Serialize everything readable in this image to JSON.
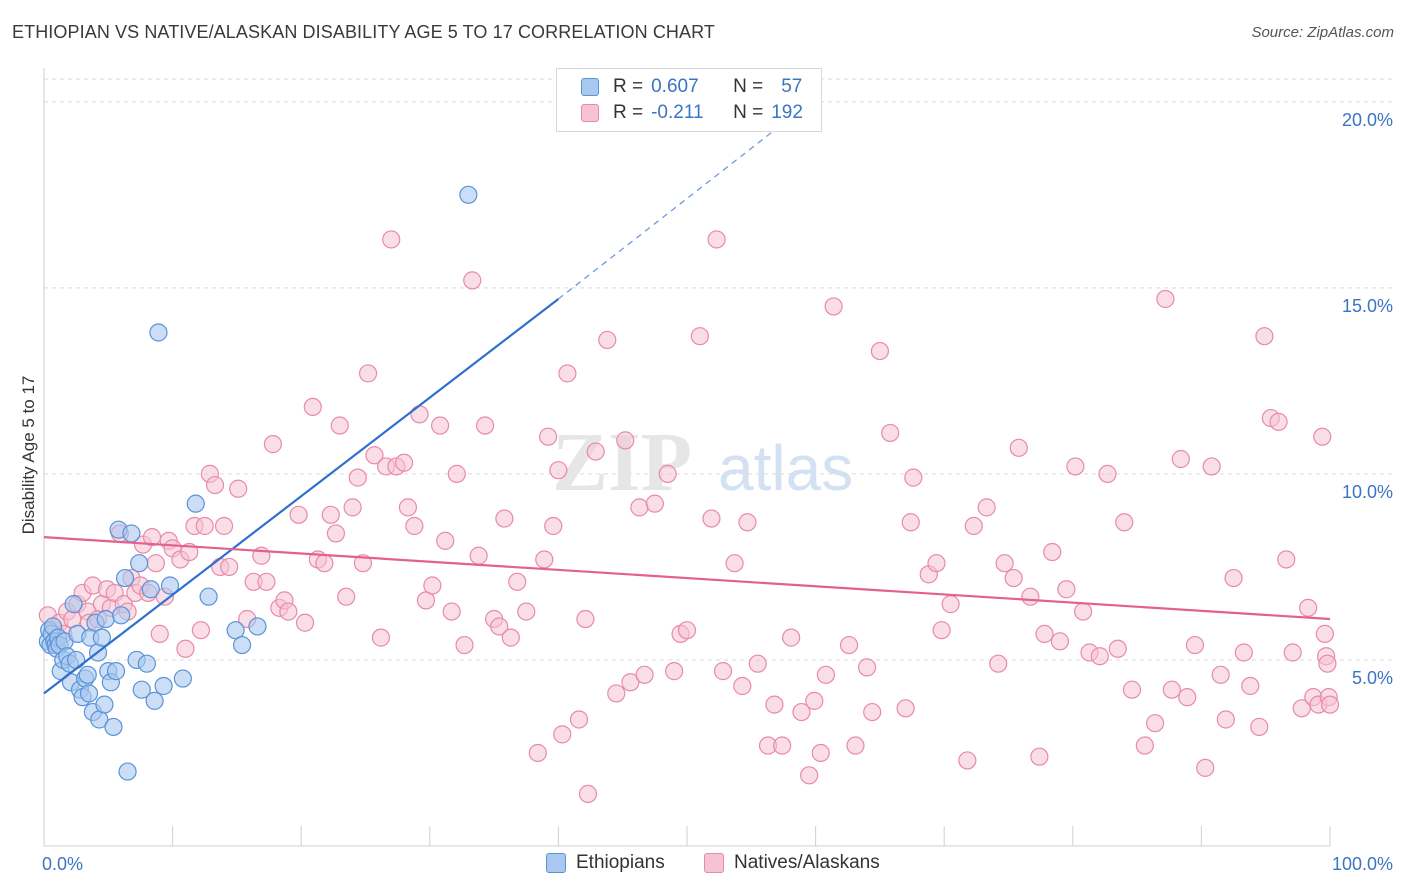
{
  "title": "ETHIOPIAN VS NATIVE/ALASKAN DISABILITY AGE 5 TO 17 CORRELATION CHART",
  "source": "Source: ZipAtlas.com",
  "watermark": {
    "zip": "ZIP",
    "atlas": "atlas"
  },
  "legend_top": {
    "rows": [
      {
        "r_label": "R =",
        "r_value": "0.607",
        "n_label": "N =",
        "n_value": "57"
      },
      {
        "r_label": "R =",
        "r_value": "-0.211",
        "n_label": "N =",
        "n_value": "192"
      }
    ]
  },
  "bottom_legend": {
    "ethiopians": "Ethiopians",
    "natives": "Natives/Alaskans"
  },
  "colors": {
    "blue_fill": "#a9c8f0",
    "blue_stroke": "#5b93d6",
    "blue_line": "#2f6fd0",
    "pink_fill": "#f6c3d3",
    "pink_stroke": "#e88aa8",
    "pink_line": "#e3608f",
    "axis_label": "#3a74c4",
    "grid": "#d9d9d9"
  },
  "chart_data": {
    "type": "scatter",
    "title": "ETHIOPIAN VS NATIVE/ALASKAN DISABILITY AGE 5 TO 17 CORRELATION CHART",
    "xlabel": "",
    "ylabel": "Disability Age 5 to 17",
    "xlim": [
      0,
      100
    ],
    "ylim": [
      0,
      20.8
    ],
    "x_tick_labels": [
      "0.0%",
      "100.0%"
    ],
    "y_ticks": [
      5,
      10,
      15,
      20
    ],
    "y_tick_labels": [
      "5.0%",
      "10.0%",
      "15.0%",
      "20.0%"
    ],
    "grid": true,
    "legend_position": "top-center",
    "series": [
      {
        "name": "Ethiopians",
        "r": 0.607,
        "n": 57,
        "trend": {
          "x0": 0,
          "y0": 4.1,
          "x1": 40,
          "y1": 14.7,
          "dash_to_x": 60,
          "dash_to_y": 20.1
        },
        "points": [
          [
            0.3,
            5.5
          ],
          [
            0.4,
            5.8
          ],
          [
            0.5,
            5.4
          ],
          [
            0.6,
            5.7
          ],
          [
            0.7,
            5.9
          ],
          [
            0.8,
            5.5
          ],
          [
            0.9,
            5.4
          ],
          [
            1.0,
            5.3
          ],
          [
            1.1,
            5.6
          ],
          [
            1.2,
            5.4
          ],
          [
            1.3,
            4.7
          ],
          [
            1.5,
            5.0
          ],
          [
            1.6,
            5.5
          ],
          [
            1.8,
            5.1
          ],
          [
            2.0,
            4.9
          ],
          [
            2.1,
            4.4
          ],
          [
            2.3,
            6.5
          ],
          [
            2.5,
            5.0
          ],
          [
            2.6,
            5.7
          ],
          [
            2.8,
            4.2
          ],
          [
            3.0,
            4.0
          ],
          [
            3.2,
            4.5
          ],
          [
            3.4,
            4.6
          ],
          [
            3.5,
            4.1
          ],
          [
            3.6,
            5.6
          ],
          [
            3.8,
            3.6
          ],
          [
            4.0,
            6.0
          ],
          [
            4.2,
            5.2
          ],
          [
            4.3,
            3.4
          ],
          [
            4.5,
            5.6
          ],
          [
            4.7,
            3.8
          ],
          [
            4.8,
            6.1
          ],
          [
            5.0,
            4.7
          ],
          [
            5.2,
            4.4
          ],
          [
            5.4,
            3.2
          ],
          [
            5.6,
            4.7
          ],
          [
            5.8,
            8.5
          ],
          [
            6.0,
            6.2
          ],
          [
            6.3,
            7.2
          ],
          [
            6.5,
            2.0
          ],
          [
            6.8,
            8.4
          ],
          [
            7.2,
            5.0
          ],
          [
            7.4,
            7.6
          ],
          [
            7.6,
            4.2
          ],
          [
            8.0,
            4.9
          ],
          [
            8.3,
            6.9
          ],
          [
            8.6,
            3.9
          ],
          [
            8.9,
            13.8
          ],
          [
            9.3,
            4.3
          ],
          [
            9.8,
            7.0
          ],
          [
            10.8,
            4.5
          ],
          [
            11.8,
            9.2
          ],
          [
            12.8,
            6.7
          ],
          [
            14.9,
            5.8
          ],
          [
            15.4,
            5.4
          ],
          [
            16.6,
            5.9
          ],
          [
            33.0,
            17.5
          ]
        ]
      },
      {
        "name": "Natives/Alaskans",
        "r": -0.211,
        "n": 192,
        "trend": {
          "x0": 0,
          "y0": 8.3,
          "x1": 100,
          "y1": 6.1
        },
        "points": [
          [
            0.3,
            6.2
          ],
          [
            0.8,
            5.8
          ],
          [
            1.2,
            6.0
          ],
          [
            1.5,
            5.7
          ],
          [
            1.8,
            6.3
          ],
          [
            2.2,
            6.1
          ],
          [
            2.6,
            6.5
          ],
          [
            3.0,
            6.8
          ],
          [
            3.4,
            6.3
          ],
          [
            3.5,
            6.0
          ],
          [
            3.8,
            7.0
          ],
          [
            4.2,
            6.1
          ],
          [
            4.5,
            6.5
          ],
          [
            4.9,
            6.9
          ],
          [
            5.2,
            6.4
          ],
          [
            5.5,
            6.8
          ],
          [
            5.9,
            8.4
          ],
          [
            6.2,
            6.5
          ],
          [
            6.5,
            6.3
          ],
          [
            6.8,
            7.2
          ],
          [
            7.1,
            6.8
          ],
          [
            7.5,
            7.0
          ],
          [
            7.7,
            8.1
          ],
          [
            8.1,
            6.8
          ],
          [
            8.4,
            8.3
          ],
          [
            8.7,
            7.6
          ],
          [
            9.0,
            5.7
          ],
          [
            9.4,
            6.7
          ],
          [
            9.7,
            8.2
          ],
          [
            10.0,
            8.0
          ],
          [
            10.6,
            7.7
          ],
          [
            11.0,
            5.3
          ],
          [
            11.3,
            7.9
          ],
          [
            11.7,
            8.6
          ],
          [
            12.2,
            5.8
          ],
          [
            12.5,
            8.6
          ],
          [
            12.9,
            10.0
          ],
          [
            13.3,
            9.7
          ],
          [
            13.7,
            7.5
          ],
          [
            14.0,
            8.6
          ],
          [
            14.4,
            7.5
          ],
          [
            15.1,
            9.6
          ],
          [
            15.8,
            6.1
          ],
          [
            16.3,
            7.1
          ],
          [
            16.9,
            7.8
          ],
          [
            17.3,
            7.1
          ],
          [
            17.8,
            10.8
          ],
          [
            18.3,
            6.4
          ],
          [
            18.7,
            6.6
          ],
          [
            19.0,
            6.3
          ],
          [
            19.8,
            8.9
          ],
          [
            20.3,
            6.0
          ],
          [
            20.9,
            11.8
          ],
          [
            21.3,
            7.7
          ],
          [
            21.8,
            7.6
          ],
          [
            22.3,
            8.9
          ],
          [
            22.7,
            8.4
          ],
          [
            23.0,
            11.3
          ],
          [
            23.5,
            6.7
          ],
          [
            24.0,
            9.1
          ],
          [
            24.4,
            9.9
          ],
          [
            24.8,
            7.6
          ],
          [
            25.2,
            12.7
          ],
          [
            25.7,
            10.5
          ],
          [
            26.2,
            5.6
          ],
          [
            26.6,
            10.2
          ],
          [
            27.0,
            16.3
          ],
          [
            27.4,
            10.2
          ],
          [
            28.0,
            10.3
          ],
          [
            28.3,
            9.1
          ],
          [
            28.8,
            8.6
          ],
          [
            29.2,
            11.6
          ],
          [
            29.7,
            6.6
          ],
          [
            30.2,
            7.0
          ],
          [
            30.8,
            11.3
          ],
          [
            31.2,
            8.2
          ],
          [
            31.7,
            6.3
          ],
          [
            32.1,
            10.0
          ],
          [
            32.7,
            5.4
          ],
          [
            33.3,
            15.2
          ],
          [
            33.8,
            7.8
          ],
          [
            34.3,
            11.3
          ],
          [
            35.0,
            6.1
          ],
          [
            35.4,
            5.9
          ],
          [
            35.8,
            8.8
          ],
          [
            36.3,
            5.6
          ],
          [
            36.8,
            7.1
          ],
          [
            37.5,
            6.3
          ],
          [
            38.4,
            2.5
          ],
          [
            38.9,
            7.7
          ],
          [
            39.2,
            11.0
          ],
          [
            39.6,
            8.6
          ],
          [
            40.0,
            10.1
          ],
          [
            40.3,
            3.0
          ],
          [
            40.7,
            12.7
          ],
          [
            41.6,
            3.4
          ],
          [
            42.1,
            6.1
          ],
          [
            42.3,
            1.4
          ],
          [
            42.9,
            10.6
          ],
          [
            43.8,
            13.6
          ],
          [
            44.5,
            4.1
          ],
          [
            45.2,
            10.9
          ],
          [
            45.6,
            4.4
          ],
          [
            46.3,
            9.1
          ],
          [
            46.7,
            4.6
          ],
          [
            47.5,
            9.2
          ],
          [
            48.5,
            10.0
          ],
          [
            49.0,
            4.7
          ],
          [
            49.5,
            5.7
          ],
          [
            50.0,
            5.8
          ],
          [
            51.0,
            13.7
          ],
          [
            51.9,
            8.8
          ],
          [
            52.3,
            16.3
          ],
          [
            52.8,
            4.7
          ],
          [
            53.7,
            7.6
          ],
          [
            54.3,
            4.3
          ],
          [
            54.7,
            8.7
          ],
          [
            55.5,
            4.9
          ],
          [
            56.3,
            2.7
          ],
          [
            56.8,
            3.8
          ],
          [
            57.4,
            2.7
          ],
          [
            58.1,
            5.6
          ],
          [
            58.9,
            3.6
          ],
          [
            59.5,
            1.9
          ],
          [
            59.9,
            3.9
          ],
          [
            60.4,
            2.5
          ],
          [
            60.8,
            4.6
          ],
          [
            61.4,
            14.5
          ],
          [
            62.6,
            5.4
          ],
          [
            63.1,
            2.7
          ],
          [
            64.0,
            4.8
          ],
          [
            64.4,
            3.6
          ],
          [
            65.0,
            13.3
          ],
          [
            65.8,
            11.1
          ],
          [
            67.0,
            3.7
          ],
          [
            67.6,
            9.9
          ],
          [
            67.4,
            8.7
          ],
          [
            68.8,
            7.3
          ],
          [
            69.4,
            7.6
          ],
          [
            69.8,
            5.8
          ],
          [
            70.5,
            6.5
          ],
          [
            71.8,
            2.3
          ],
          [
            72.3,
            8.6
          ],
          [
            73.3,
            9.1
          ],
          [
            74.2,
            4.9
          ],
          [
            74.7,
            7.6
          ],
          [
            75.4,
            7.2
          ],
          [
            75.8,
            10.7
          ],
          [
            76.7,
            6.7
          ],
          [
            77.8,
            5.7
          ],
          [
            77.4,
            2.4
          ],
          [
            78.4,
            7.9
          ],
          [
            79.0,
            5.5
          ],
          [
            79.5,
            6.9
          ],
          [
            80.2,
            10.2
          ],
          [
            80.8,
            6.3
          ],
          [
            81.3,
            5.2
          ],
          [
            82.1,
            5.1
          ],
          [
            82.7,
            10.0
          ],
          [
            83.5,
            5.3
          ],
          [
            84.0,
            8.7
          ],
          [
            84.6,
            4.2
          ],
          [
            85.6,
            2.7
          ],
          [
            86.4,
            3.3
          ],
          [
            87.2,
            14.7
          ],
          [
            87.7,
            4.2
          ],
          [
            88.4,
            10.4
          ],
          [
            88.9,
            4.0
          ],
          [
            89.5,
            5.4
          ],
          [
            90.3,
            2.1
          ],
          [
            90.8,
            10.2
          ],
          [
            91.5,
            4.6
          ],
          [
            91.9,
            3.4
          ],
          [
            92.5,
            7.2
          ],
          [
            93.3,
            5.2
          ],
          [
            93.8,
            4.3
          ],
          [
            94.5,
            3.2
          ],
          [
            94.9,
            13.7
          ],
          [
            95.4,
            11.5
          ],
          [
            96.0,
            11.4
          ],
          [
            96.6,
            7.7
          ],
          [
            97.1,
            5.2
          ],
          [
            97.8,
            3.7
          ],
          [
            98.3,
            6.4
          ],
          [
            98.7,
            4.0
          ],
          [
            99.1,
            3.8
          ],
          [
            99.4,
            11.0
          ],
          [
            99.6,
            5.7
          ],
          [
            99.7,
            5.1
          ],
          [
            99.8,
            4.9
          ],
          [
            99.9,
            4.0
          ],
          [
            100.0,
            3.8
          ]
        ]
      }
    ]
  }
}
